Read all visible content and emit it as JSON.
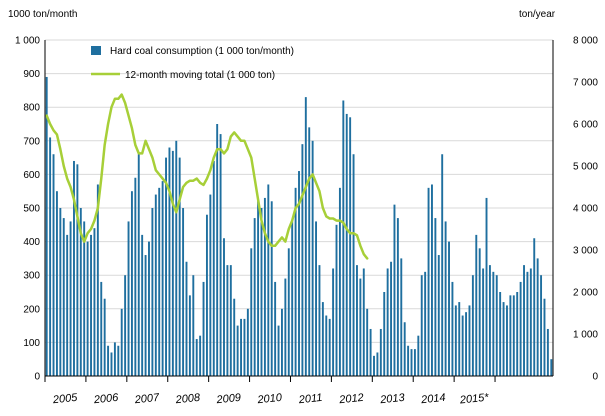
{
  "chart_data": {
    "type": "bar",
    "left_axis_unit": "1000 ton/month",
    "right_axis_unit": "ton/year",
    "ylim_left": [
      0,
      1000
    ],
    "ylim_right": [
      0,
      8000
    ],
    "left_ticks": [
      "0",
      "100",
      "200",
      "300",
      "400",
      "500",
      "600",
      "700",
      "800",
      "900",
      "1 000"
    ],
    "right_ticks": [
      "0",
      "1 000",
      "2 000",
      "3 000",
      "4 000",
      "5 000",
      "6 000",
      "7 000",
      "8 000"
    ],
    "years": [
      "2005",
      "2006",
      "2007",
      "2008",
      "2009",
      "2010",
      "2011",
      "2012",
      "2013",
      "2014",
      "2015*"
    ],
    "grid": true,
    "legend_position": "top-left",
    "colors": {
      "bar": "#1f6f9f",
      "line": "#a7cf38"
    },
    "series": [
      {
        "name": "Hard coal consumption (1 000 ton/month)",
        "type": "bar",
        "axis": "left",
        "values": [
          890,
          710,
          660,
          550,
          500,
          470,
          420,
          460,
          640,
          630,
          500,
          460,
          400,
          420,
          440,
          570,
          280,
          230,
          90,
          70,
          100,
          90,
          200,
          300,
          460,
          550,
          590,
          660,
          420,
          360,
          400,
          500,
          540,
          560,
          580,
          650,
          680,
          670,
          700,
          650,
          500,
          340,
          240,
          300,
          110,
          120,
          280,
          480,
          540,
          640,
          750,
          720,
          410,
          330,
          330,
          230,
          150,
          170,
          170,
          200,
          380,
          470,
          520,
          500,
          530,
          570,
          520,
          280,
          150,
          200,
          290,
          380,
          460,
          560,
          610,
          690,
          830,
          740,
          700,
          460,
          330,
          220,
          180,
          170,
          320,
          450,
          560,
          820,
          780,
          770,
          660,
          330,
          290,
          320,
          200,
          140,
          60,
          70,
          140,
          250,
          320,
          340,
          510,
          470,
          350,
          160,
          90,
          80,
          80,
          120,
          300,
          310,
          560,
          570,
          470,
          360,
          660,
          460,
          400,
          280,
          210,
          220,
          180,
          190,
          210,
          300,
          420,
          380,
          320,
          530,
          330,
          310,
          300,
          250,
          220,
          210,
          240,
          240,
          250,
          280,
          330,
          310,
          320,
          410,
          350,
          300,
          230,
          140,
          50
        ]
      },
      {
        "name": "12-month moving total (1 000 ton)",
        "type": "line",
        "axis": "right",
        "values": [
          6200,
          6000,
          5850,
          5750,
          5400,
          5000,
          4700,
          4500,
          4200,
          3800,
          3400,
          3200,
          3400,
          3500,
          3700,
          4000,
          4700,
          5500,
          6000,
          6400,
          6600,
          6600,
          6700,
          6500,
          6200,
          5900,
          5500,
          5300,
          5300,
          5600,
          5400,
          5200,
          4900,
          4800,
          4700,
          4600,
          4400,
          4100,
          3900,
          4200,
          4500,
          4600,
          4650,
          4650,
          4700,
          4600,
          4550,
          4700,
          4900,
          5200,
          5400,
          5400,
          5300,
          5400,
          5700,
          5800,
          5700,
          5600,
          5600,
          5400,
          5200,
          4700,
          4200,
          3700,
          3400,
          3200,
          3100,
          3100,
          3200,
          3300,
          3200,
          3500,
          3700,
          4000,
          4100,
          4300,
          4500,
          4700,
          4800,
          4600,
          4400,
          4000,
          3800,
          3750,
          3750,
          3700,
          3700,
          3650,
          3500,
          3400,
          3400,
          3350,
          3100,
          2900,
          2800
        ]
      }
    ]
  }
}
